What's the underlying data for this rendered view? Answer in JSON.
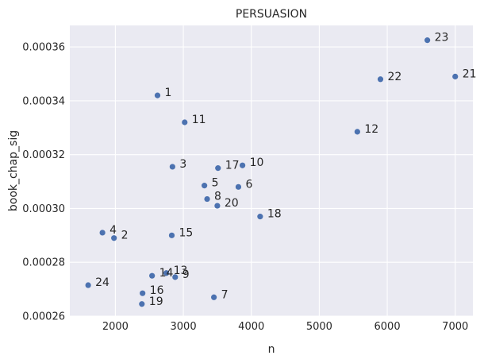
{
  "chart_data": {
    "type": "scatter",
    "title": "PERSUASION",
    "xlabel": "n",
    "ylabel": "book_chap_sig",
    "xlim": [
      1330,
      7260
    ],
    "ylim": [
      0.00026,
      0.000368
    ],
    "x_ticks": [
      2000,
      3000,
      4000,
      5000,
      6000,
      7000
    ],
    "x_tick_labels": [
      "2000",
      "3000",
      "4000",
      "5000",
      "6000",
      "7000"
    ],
    "y_ticks": [
      0.00026,
      0.00028,
      0.0003,
      0.00032,
      0.00034,
      0.00036
    ],
    "y_tick_labels": [
      "0.00026",
      "0.00028",
      "0.00030",
      "0.00032",
      "0.00034",
      "0.00036"
    ],
    "grid": true,
    "colors": {
      "background": "#eaeaf2",
      "grid": "#ffffff",
      "point": "#4c72b0",
      "text": "#262626"
    },
    "points": [
      {
        "label": "1",
        "x": 2620,
        "y": 0.000342
      },
      {
        "label": "2",
        "x": 1980,
        "y": 0.000289
      },
      {
        "label": "3",
        "x": 2840,
        "y": 0.0003155
      },
      {
        "label": "4",
        "x": 1810,
        "y": 0.000291
      },
      {
        "label": "5",
        "x": 3310,
        "y": 0.0003085
      },
      {
        "label": "6",
        "x": 3810,
        "y": 0.000308
      },
      {
        "label": "7",
        "x": 3450,
        "y": 0.000267
      },
      {
        "label": "8",
        "x": 3350,
        "y": 0.0003035
      },
      {
        "label": "9",
        "x": 2880,
        "y": 0.0002745
      },
      {
        "label": "10",
        "x": 3870,
        "y": 0.000316
      },
      {
        "label": "11",
        "x": 3020,
        "y": 0.000332
      },
      {
        "label": "12",
        "x": 5560,
        "y": 0.0003285
      },
      {
        "label": "13",
        "x": 2750,
        "y": 0.000276
      },
      {
        "label": "14",
        "x": 2540,
        "y": 0.000275
      },
      {
        "label": "15",
        "x": 2830,
        "y": 0.00029
      },
      {
        "label": "16",
        "x": 2400,
        "y": 0.0002685
      },
      {
        "label": "17",
        "x": 3510,
        "y": 0.000315
      },
      {
        "label": "18",
        "x": 4130,
        "y": 0.000297
      },
      {
        "label": "19",
        "x": 2390,
        "y": 0.0002645
      },
      {
        "label": "20",
        "x": 3500,
        "y": 0.000301
      },
      {
        "label": "21",
        "x": 7000,
        "y": 0.000349
      },
      {
        "label": "22",
        "x": 5900,
        "y": 0.000348
      },
      {
        "label": "23",
        "x": 6590,
        "y": 0.0003625
      },
      {
        "label": "24",
        "x": 1600,
        "y": 0.0002715
      }
    ]
  }
}
